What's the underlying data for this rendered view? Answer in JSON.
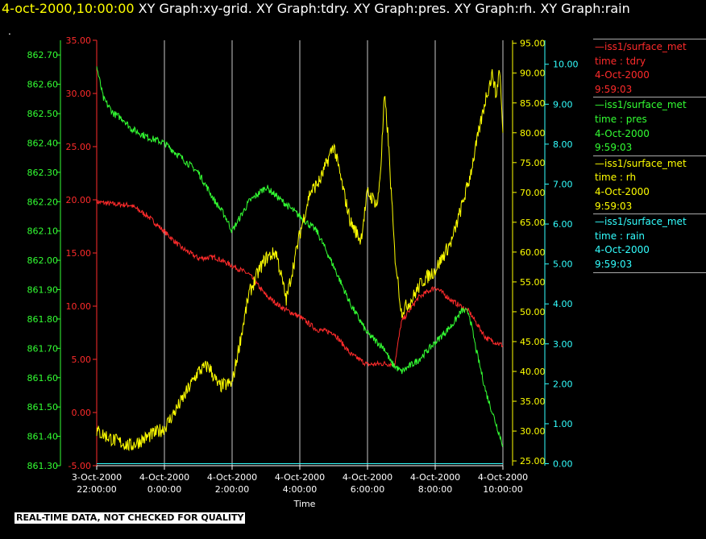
{
  "header": {
    "time": "4-oct-2000,10:00:00",
    "graphs": "XY Graph:xy-grid.  XY Graph:tdry.  XY Graph:pres.  XY Graph:rh.  XY Graph:rain",
    "dot": "."
  },
  "footer": {
    "quality_note": "REAL-TIME DATA, NOT CHECKED FOR QUALITY"
  },
  "legend": [
    {
      "name": "—iss1/surface_met",
      "var": "time : tdry",
      "date": "4-Oct-2000",
      "time": "9:59:03",
      "color": "#ff2b2b"
    },
    {
      "name": "—iss1/surface_met",
      "var": "time : pres",
      "date": "4-Oct-2000",
      "time": "9:59:03",
      "color": "#33ff33"
    },
    {
      "name": "—iss1/surface_met",
      "var": "time : rh",
      "date": "4-Oct-2000",
      "time": "9:59:03",
      "color": "#ffff00"
    },
    {
      "name": "—iss1/surface_met",
      "var": "time : rain",
      "date": "4-Oct-2000",
      "time": "9:59:03",
      "color": "#33ffff"
    }
  ],
  "chart_data": {
    "type": "line",
    "xlabel": "Time",
    "x_ticks": [
      {
        "line1": "3-Oct-2000",
        "line2": "22:00:00",
        "hours": 0
      },
      {
        "line1": "4-Oct-2000",
        "line2": "0:00:00",
        "hours": 2
      },
      {
        "line1": "4-Oct-2000",
        "line2": "2:00:00",
        "hours": 4
      },
      {
        "line1": "4-Oct-2000",
        "line2": "4:00:00",
        "hours": 6
      },
      {
        "line1": "4-Oct-2000",
        "line2": "6:00:00",
        "hours": 8
      },
      {
        "line1": "4-Oct-2000",
        "line2": "8:00:00",
        "hours": 10
      },
      {
        "line1": "4-Oct-2000",
        "line2": "10:00:00",
        "hours": 12
      }
    ],
    "xlim_hours": [
      0,
      12
    ],
    "grid": "vertical",
    "axes": {
      "pres": {
        "ylim": [
          861.3,
          862.75
        ],
        "ticks": [
          "861.30",
          "861.40",
          "861.50",
          "861.60",
          "861.70",
          "861.80",
          "861.90",
          "862.00",
          "862.10",
          "862.20",
          "862.30",
          "862.40",
          "862.50",
          "862.60",
          "862.70"
        ],
        "color": "#33ff33"
      },
      "tdry": {
        "ylim": [
          -5,
          35
        ],
        "ticks": [
          "-5.00",
          "0.00",
          "5.00",
          "10.00",
          "15.00",
          "20.00",
          "25.00",
          "30.00",
          "35.00"
        ],
        "color": "#ff2b2b"
      },
      "rh": {
        "ylim": [
          24.2,
          95.5
        ],
        "ticks": [
          "25.00",
          "30.00",
          "35.00",
          "40.00",
          "45.00",
          "50.00",
          "55.00",
          "60.00",
          "65.00",
          "70.00",
          "75.00",
          "80.00",
          "85.00",
          "90.00",
          "95.00"
        ],
        "color": "#ffff00"
      },
      "rain": {
        "ylim": [
          -0.05,
          10.6
        ],
        "ticks": [
          "0.00",
          "1.00",
          "2.00",
          "3.00",
          "4.00",
          "5.00",
          "6.00",
          "7.00",
          "8.00",
          "9.00",
          "10.00"
        ],
        "color": "#33ffff"
      }
    },
    "series": [
      {
        "name": "tdry",
        "color": "#ff2b2b",
        "x": [
          0,
          0.5,
          1,
          1.5,
          2,
          2.5,
          3,
          3.5,
          4,
          4.5,
          5,
          5.5,
          6,
          6.5,
          7,
          7.5,
          8,
          8.5,
          8.8,
          9,
          9.5,
          10,
          10.5,
          11,
          11.5,
          12
        ],
        "y": [
          19.8,
          19.6,
          19.5,
          18.5,
          17,
          15.5,
          14.5,
          14.6,
          13.8,
          13,
          11,
          9.8,
          9,
          7.8,
          7.5,
          5.5,
          4.5,
          4.6,
          4.5,
          8.5,
          10.8,
          11.8,
          10.5,
          9.5,
          7,
          6.3
        ]
      },
      {
        "name": "pres",
        "color": "#33ff33",
        "x": [
          0,
          0.2,
          0.5,
          0.8,
          1,
          1.5,
          2,
          2.5,
          3,
          3.5,
          3.8,
          4,
          4.5,
          5,
          5.5,
          6,
          6.3,
          6.5,
          7,
          7.5,
          8,
          8.5,
          8.7,
          9,
          9.5,
          10,
          10.5,
          10.8,
          11,
          11.2,
          11.5,
          12
        ],
        "y": [
          862.66,
          862.55,
          862.5,
          862.48,
          862.45,
          862.42,
          862.4,
          862.35,
          862.3,
          862.2,
          862.15,
          862.1,
          862.2,
          862.25,
          862.2,
          862.15,
          862.12,
          862.1,
          861.98,
          861.85,
          861.75,
          861.7,
          861.65,
          861.62,
          861.66,
          861.72,
          861.78,
          861.83,
          861.82,
          861.7,
          861.55,
          861.37
        ]
      },
      {
        "name": "rh",
        "color": "#ffff00",
        "x": [
          0,
          0.5,
          1,
          1.5,
          2,
          2.5,
          3,
          3.3,
          3.6,
          4,
          4.3,
          4.5,
          4.8,
          5,
          5.3,
          5.6,
          6,
          6.3,
          6.6,
          7,
          7.3,
          7.5,
          7.8,
          8,
          8.3,
          8.4,
          8.5,
          8.6,
          8.8,
          9,
          9.3,
          9.6,
          10,
          10.5,
          11,
          11.5,
          11.7,
          11.8,
          11.9,
          12
        ],
        "y": [
          30,
          28.5,
          27.5,
          29,
          30.5,
          35,
          40,
          41,
          37.5,
          38,
          47,
          53,
          57,
          59,
          60,
          52,
          63,
          70,
          72,
          78,
          70,
          65,
          62,
          70,
          68,
          75,
          86,
          80,
          60,
          50,
          52,
          55,
          57,
          62,
          72,
          86,
          90,
          86,
          91,
          80
        ]
      },
      {
        "name": "rain",
        "color": "#33ffff",
        "x": [
          0,
          12
        ],
        "y": [
          0,
          0
        ]
      }
    ]
  }
}
